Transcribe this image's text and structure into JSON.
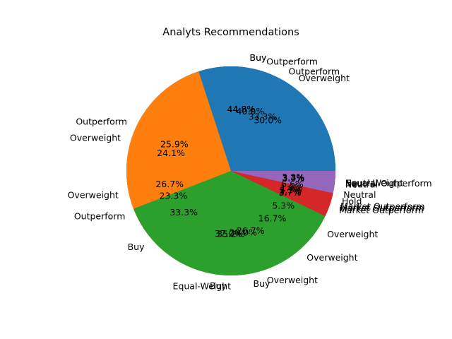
{
  "chart_data": {
    "type": "pie",
    "title": "Analyts Recommendations",
    "start_angle_deg": 0,
    "direction": "counterclockwise",
    "colors": [
      "#1f77b4",
      "#ff7f0e",
      "#2ca02c",
      "#d62728",
      "#9467bd"
    ],
    "overlays": [
      {
        "slices": [
          {
            "label": "Buy",
            "value": 44.8
          },
          {
            "label": "Outperform",
            "value": 23.3
          },
          {
            "label": "Buy",
            "value": 20.0
          },
          {
            "label": "Overweight",
            "value": 5.3
          },
          {
            "label": "Neutral",
            "value": 6.6
          }
        ]
      },
      {
        "slices": [
          {
            "label": "Buy",
            "value": 44.8
          },
          {
            "label": "Buy",
            "value": 33.3
          },
          {
            "label": "Overweight",
            "value": 16.7
          },
          {
            "label": "Hold",
            "value": 1.9
          },
          {
            "label": "Neutral",
            "value": 3.3
          }
        ]
      },
      {
        "slices": [
          {
            "label": "Outperform",
            "value": 40.0
          },
          {
            "label": "Overweight",
            "value": 26.7
          },
          {
            "label": "Overweight",
            "value": 26.7
          },
          {
            "label": "Market Outperform",
            "value": 3.3
          },
          {
            "label": "Equal-Weight",
            "value": 3.3
          }
        ]
      },
      {
        "slices": [
          {
            "label": "Outperform",
            "value": 33.3
          },
          {
            "label": "Overweight",
            "value": 24.1
          },
          {
            "label": "Equal-Weight",
            "value": 35.2
          },
          {
            "label": "Market Outperform",
            "value": 3.7
          },
          {
            "label": "Neutral",
            "value": 3.7
          }
        ]
      },
      {
        "slices": [
          {
            "label": "Overweight",
            "value": 30.0
          },
          {
            "label": "Outperform",
            "value": 25.9
          },
          {
            "label": "Buy",
            "value": 37.0
          },
          {
            "label": "Market Outperform",
            "value": 3.7
          },
          {
            "label": "Neutral Outperform",
            "value": 3.4
          }
        ]
      }
    ]
  }
}
